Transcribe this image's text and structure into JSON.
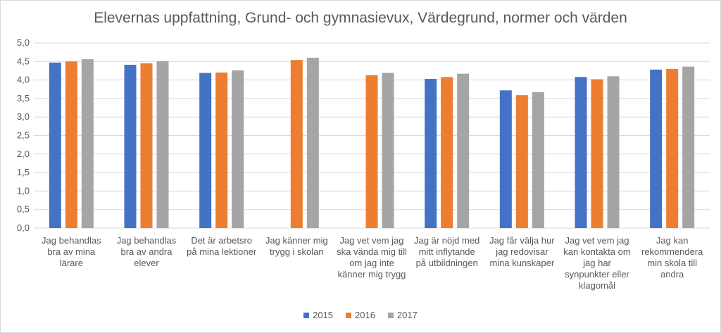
{
  "chart_data": {
    "type": "bar",
    "title": "Elevernas uppfattning, Grund- och gymnasievux, Värdegrund, normer och värden",
    "xlabel": "",
    "ylabel": "",
    "ylim": [
      0,
      5
    ],
    "yticks": [
      "0,0",
      "0,5",
      "1,0",
      "1,5",
      "2,0",
      "2,5",
      "3,0",
      "3,5",
      "4,0",
      "4,5",
      "5,0"
    ],
    "grid": true,
    "legend_position": "bottom",
    "categories": [
      [
        "Jag behandlas",
        "bra av mina",
        "lärare"
      ],
      [
        "Jag behandlas",
        "bra av andra",
        "elever"
      ],
      [
        "Det är arbetsro",
        "på mina lektioner"
      ],
      [
        "Jag känner mig",
        "trygg i skolan"
      ],
      [
        "Jag vet vem jag",
        "ska vända mig till",
        "om jag inte",
        "känner mig trygg"
      ],
      [
        "Jag är nöjd med",
        "mitt inflytande",
        "på utbildningen"
      ],
      [
        "Jag får välja hur",
        "jag redovisar",
        "mina kunskaper"
      ],
      [
        "Jag vet vem jag",
        "kan kontakta om",
        "jag har",
        "synpunkter eller",
        "klagomål"
      ],
      [
        "Jag kan",
        "rekommendera",
        "min skola till",
        "andra"
      ]
    ],
    "series": [
      {
        "name": "2015",
        "color": "#4472c4",
        "values": [
          4.47,
          4.41,
          4.19,
          null,
          null,
          4.03,
          3.72,
          4.08,
          4.28
        ]
      },
      {
        "name": "2016",
        "color": "#ed7d31",
        "values": [
          4.5,
          4.45,
          4.2,
          4.54,
          4.13,
          4.08,
          3.59,
          4.02,
          4.3
        ]
      },
      {
        "name": "2017",
        "color": "#a5a5a5",
        "values": [
          4.56,
          4.51,
          4.26,
          4.6,
          4.19,
          4.17,
          3.67,
          4.1,
          4.36
        ]
      }
    ]
  }
}
